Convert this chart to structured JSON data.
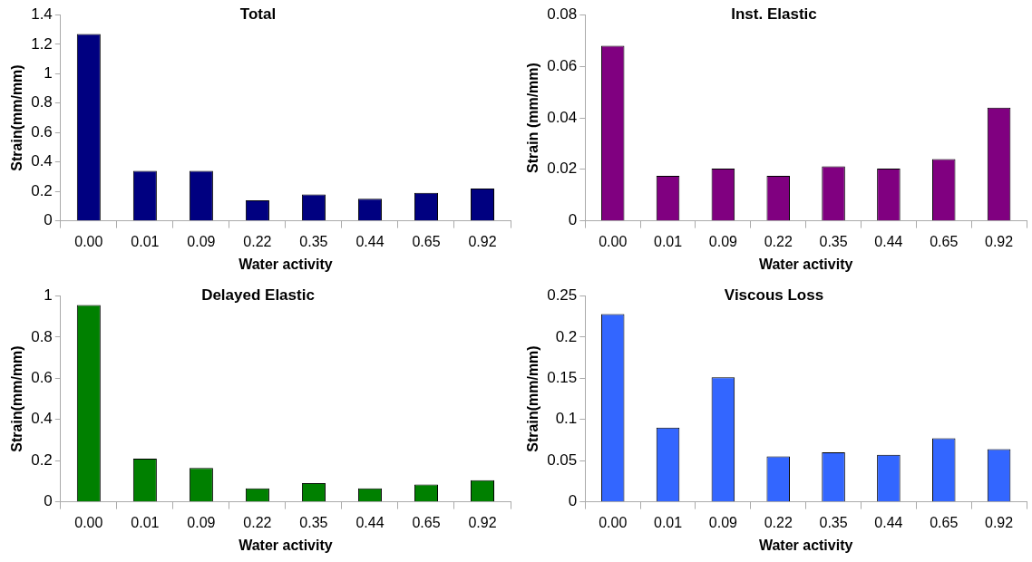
{
  "chart_data": [
    {
      "type": "bar",
      "title": "Total",
      "xlabel": "Water activity",
      "ylabel": "Strain(mm/mm)",
      "categories": [
        "0.00",
        "0.01",
        "0.09",
        "0.22",
        "0.35",
        "0.44",
        "0.65",
        "0.92"
      ],
      "values": [
        1.27,
        0.34,
        0.34,
        0.14,
        0.18,
        0.15,
        0.19,
        0.22
      ],
      "color": "#000080",
      "ylim": [
        0,
        1.4
      ],
      "yticks": [
        0,
        0.2,
        0.4,
        0.6,
        0.8,
        1,
        1.2,
        1.4
      ],
      "grid": false
    },
    {
      "type": "bar",
      "title": "Inst. Elastic",
      "xlabel": "Water activity",
      "ylabel": "Strain (mm/mm)",
      "categories": [
        "0.00",
        "0.01",
        "0.09",
        "0.22",
        "0.35",
        "0.44",
        "0.65",
        "0.92"
      ],
      "values": [
        0.068,
        0.0175,
        0.0203,
        0.0175,
        0.0212,
        0.0203,
        0.024,
        0.044
      ],
      "color": "#800080",
      "ylim": [
        0,
        0.08
      ],
      "yticks": [
        0,
        0.02,
        0.04,
        0.06,
        0.08
      ],
      "grid": false
    },
    {
      "type": "bar",
      "title": "Delayed Elastic",
      "xlabel": "Water activity",
      "ylabel": "Strain(mm/mm)",
      "categories": [
        "0.00",
        "0.01",
        "0.09",
        "0.22",
        "0.35",
        "0.44",
        "0.65",
        "0.92"
      ],
      "values": [
        0.955,
        0.21,
        0.164,
        0.065,
        0.091,
        0.065,
        0.084,
        0.105
      ],
      "color": "#008000",
      "ylim": [
        0,
        1
      ],
      "yticks": [
        0,
        0.2,
        0.4,
        0.6,
        0.8,
        1
      ],
      "grid": false
    },
    {
      "type": "bar",
      "title": "Viscous Loss",
      "xlabel": "Water activity",
      "ylabel": "Strain(mm/mm)",
      "categories": [
        "0.00",
        "0.01",
        "0.09",
        "0.22",
        "0.35",
        "0.44",
        "0.65",
        "0.92"
      ],
      "values": [
        0.228,
        0.09,
        0.151,
        0.055,
        0.06,
        0.057,
        0.077,
        0.064
      ],
      "color": "#3366ff",
      "ylim": [
        0,
        0.25
      ],
      "yticks": [
        0,
        0.05,
        0.1,
        0.15,
        0.2,
        0.25
      ],
      "grid": false
    }
  ]
}
